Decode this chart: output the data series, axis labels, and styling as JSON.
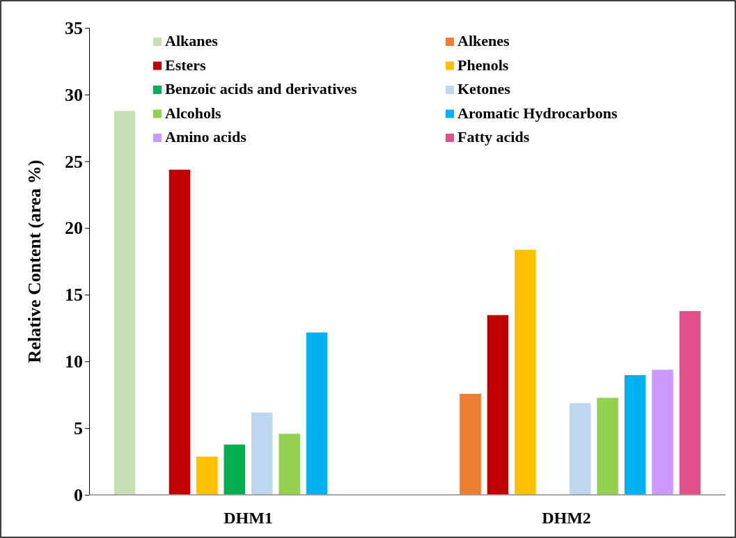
{
  "chart_data": {
    "type": "bar",
    "ylabel": "Relative Content (area %)",
    "categories": [
      "DHM1",
      "DHM2"
    ],
    "series": [
      {
        "name": "Alkanes",
        "color": "#c5e0b4",
        "values": [
          28.8,
          null
        ]
      },
      {
        "name": "Alkenes",
        "color": "#ed7d31",
        "values": [
          null,
          7.6
        ]
      },
      {
        "name": "Esters",
        "color": "#c00000",
        "values": [
          24.4,
          13.5
        ]
      },
      {
        "name": "Phenols",
        "color": "#ffc000",
        "values": [
          2.9,
          18.4
        ]
      },
      {
        "name": "Benzoic acids and derivatives",
        "color": "#00b050",
        "values": [
          3.8,
          null
        ]
      },
      {
        "name": "Ketones",
        "color": "#bdd7ee",
        "values": [
          6.2,
          6.9
        ]
      },
      {
        "name": "Alcohols",
        "color": "#92d050",
        "values": [
          4.6,
          7.3
        ]
      },
      {
        "name": "Aromatic Hydrocarbons",
        "color": "#00b0f0",
        "values": [
          12.2,
          9.0
        ]
      },
      {
        "name": "Amino acids",
        "color": "#cc99ff",
        "values": [
          null,
          9.4
        ]
      },
      {
        "name": "Fatty acids",
        "color": "#e0508a",
        "values": [
          null,
          13.8
        ]
      }
    ],
    "ylim": [
      0,
      35
    ],
    "yticks": [
      0,
      5,
      10,
      15,
      20,
      25,
      30,
      35
    ],
    "grid": false,
    "legend": "top"
  }
}
